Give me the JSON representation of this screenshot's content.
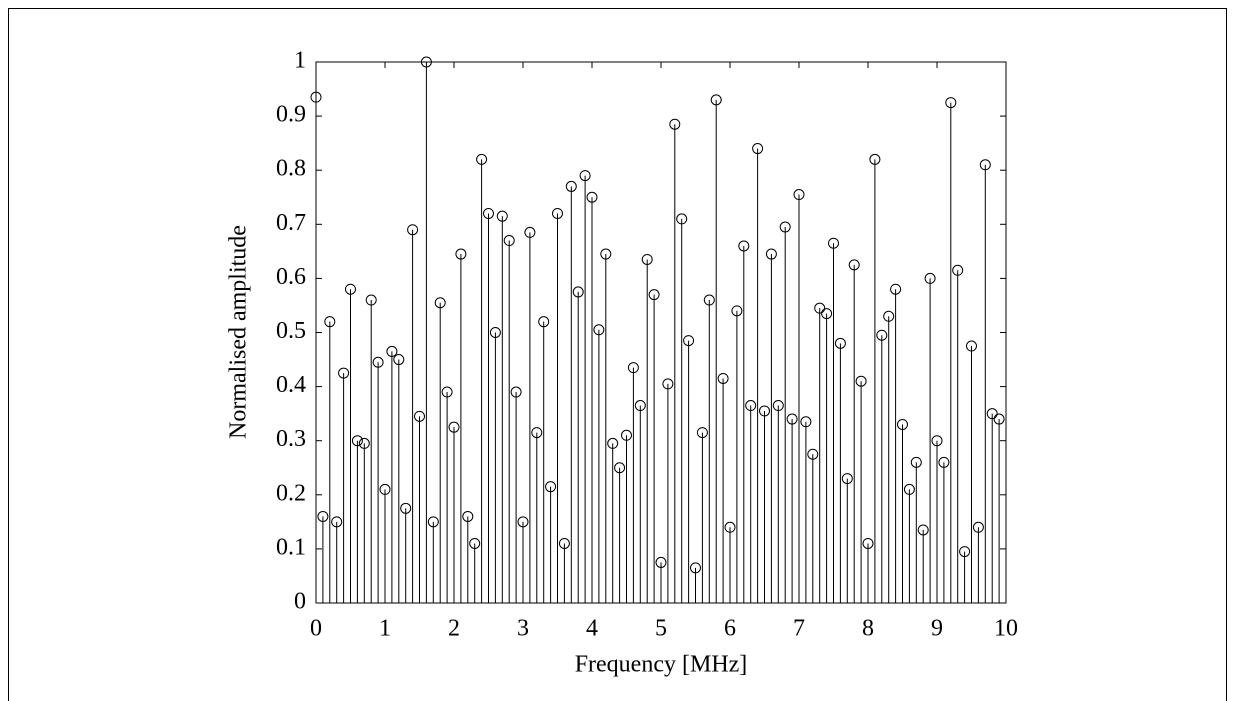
{
  "chart_data": {
    "type": "stem",
    "xlabel": "Frequency [MHz]",
    "ylabel": "Normalised amplitude",
    "x": [
      0,
      0.1,
      0.2,
      0.3,
      0.4,
      0.5,
      0.6,
      0.7,
      0.8,
      0.9,
      1,
      1.1,
      1.2,
      1.3,
      1.4,
      1.5,
      1.6,
      1.7,
      1.8,
      1.9,
      2,
      2.1,
      2.2,
      2.3,
      2.4,
      2.5,
      2.6,
      2.7,
      2.8,
      2.9,
      3,
      3.1,
      3.2,
      3.3,
      3.4,
      3.5,
      3.6,
      3.7,
      3.8,
      3.9,
      4,
      4.1,
      4.2,
      4.3,
      4.4,
      4.5,
      4.6,
      4.7,
      4.8,
      4.9,
      5,
      5.1,
      5.2,
      5.3,
      5.4,
      5.5,
      5.6,
      5.7,
      5.8,
      5.9,
      6,
      6.1,
      6.2,
      6.3,
      6.4,
      6.5,
      6.6,
      6.7,
      6.8,
      6.9,
      7,
      7.1,
      7.2,
      7.3,
      7.4,
      7.5,
      7.6,
      7.7,
      7.8,
      7.9,
      8,
      8.1,
      8.2,
      8.3,
      8.4,
      8.5,
      8.6,
      8.7,
      8.8,
      8.9,
      9,
      9.1,
      9.2,
      9.3,
      9.4,
      9.5,
      9.6,
      9.7,
      9.8,
      9.9
    ],
    "values": [
      0.935,
      0.16,
      0.52,
      0.15,
      0.425,
      0.58,
      0.3,
      0.295,
      0.56,
      0.445,
      0.21,
      0.465,
      0.45,
      0.175,
      0.69,
      0.345,
      1.0,
      0.15,
      0.555,
      0.39,
      0.325,
      0.645,
      0.16,
      0.11,
      0.82,
      0.72,
      0.5,
      0.715,
      0.67,
      0.39,
      0.15,
      0.685,
      0.315,
      0.52,
      0.215,
      0.72,
      0.11,
      0.77,
      0.575,
      0.79,
      0.75,
      0.505,
      0.645,
      0.295,
      0.25,
      0.31,
      0.435,
      0.365,
      0.635,
      0.57,
      0.075,
      0.405,
      0.885,
      0.71,
      0.485,
      0.065,
      0.315,
      0.56,
      0.93,
      0.415,
      0.14,
      0.54,
      0.66,
      0.365,
      0.84,
      0.355,
      0.645,
      0.365,
      0.695,
      0.34,
      0.755,
      0.335,
      0.275,
      0.545,
      0.535,
      0.665,
      0.48,
      0.23,
      0.625,
      0.41,
      0.11,
      0.82,
      0.495,
      0.53,
      0.58,
      0.33,
      0.21,
      0.26,
      0.135,
      0.6,
      0.3,
      0.26,
      0.925,
      0.615,
      0.095,
      0.475,
      0.14,
      0.81,
      0.35,
      0.34
    ],
    "color": "#000000",
    "xlim": [
      0,
      10
    ],
    "xticks": [
      0,
      1,
      2,
      3,
      4,
      5,
      6,
      7,
      8,
      9,
      10
    ],
    "ylim": [
      0,
      1
    ],
    "yticks": [
      0,
      0.1,
      0.2,
      0.3,
      0.4,
      0.5,
      0.6,
      0.7,
      0.8,
      0.9,
      1
    ]
  }
}
